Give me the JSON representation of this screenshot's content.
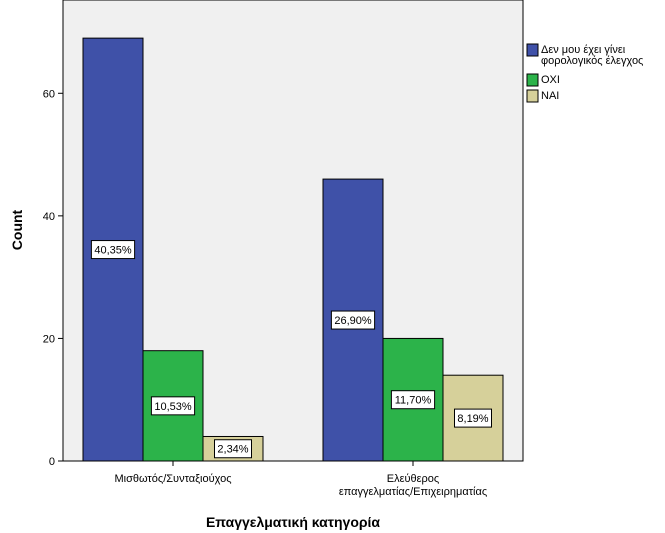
{
  "chart_data": {
    "type": "bar",
    "categories": [
      "Μισθωτός/Συνταξιούχος",
      [
        "Ελεύθερος",
        "επαγγελματίας/Επιχειρηματίας"
      ]
    ],
    "series": [
      {
        "name": [
          "Δεν μου έχει γίνει",
          "φορολογικός έλεγχος"
        ],
        "color": "#3f51a8",
        "values": [
          69,
          46
        ],
        "labels": [
          "40,35%",
          "26,90%"
        ]
      },
      {
        "name": "ΟΧΙ",
        "color": "#2cb34a",
        "values": [
          18,
          20
        ],
        "labels": [
          "10,53%",
          "11,70%"
        ]
      },
      {
        "name": "ΝΑΙ",
        "color": "#d6d09a",
        "values": [
          4,
          14
        ],
        "labels": [
          "2,34%",
          "8,19%"
        ]
      }
    ],
    "xlabel": "Επαγγελματική κατηγορία",
    "ylabel": "Count",
    "ylim": [
      0,
      70
    ],
    "yticks": [
      0,
      20,
      40,
      60
    ],
    "grid": false,
    "legend_position": "right",
    "plot_background": "#f0f0f0"
  }
}
